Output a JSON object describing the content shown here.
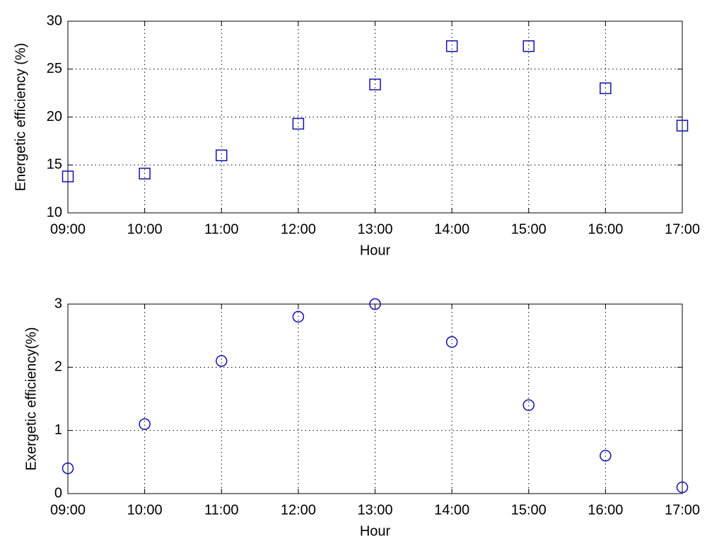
{
  "chart_data": [
    {
      "type": "scatter",
      "marker": "square",
      "color": "#1010b0",
      "y_label": "Energetic efficiency (%)",
      "x_label": "Hour",
      "categories": [
        "09:00",
        "10:00",
        "11:00",
        "12:00",
        "13:00",
        "14:00",
        "15:00",
        "16:00",
        "17:00"
      ],
      "values": [
        13.8,
        14.1,
        16.0,
        19.3,
        23.4,
        27.4,
        27.4,
        23.0,
        19.1
      ],
      "ylim": [
        10,
        30
      ],
      "yticks": [
        10,
        15,
        20,
        25,
        30
      ],
      "grid": true
    },
    {
      "type": "scatter",
      "marker": "circle",
      "color": "#1010b0",
      "y_label": "Exergetic efficiency(%)",
      "x_label": "Hour",
      "categories": [
        "09:00",
        "10:00",
        "11:00",
        "12:00",
        "13:00",
        "14:00",
        "15:00",
        "16:00",
        "17:00"
      ],
      "values": [
        0.4,
        1.1,
        2.1,
        2.8,
        3.0,
        2.4,
        1.4,
        0.6,
        0.1
      ],
      "ylim": [
        0,
        3
      ],
      "yticks": [
        0,
        1,
        2,
        3
      ],
      "grid": true
    }
  ]
}
